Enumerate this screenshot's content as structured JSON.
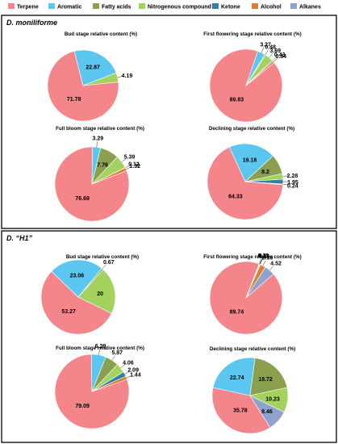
{
  "legend": [
    {
      "name": "Terpene",
      "color": "#f4858a"
    },
    {
      "name": "Aromatic",
      "color": "#5bc7f0"
    },
    {
      "name": "Fatty acids",
      "color": "#8aa04f"
    },
    {
      "name": "Nitrogenous compound",
      "color": "#a4d25f"
    },
    {
      "name": "Ketone",
      "color": "#2f7fa6"
    },
    {
      "name": "Alcohol",
      "color": "#dd7e38"
    },
    {
      "name": "Alkanes",
      "color": "#8ea2cc"
    }
  ],
  "panels": [
    {
      "title": "D. moniliforme"
    },
    {
      "title": "D. “H1”"
    }
  ],
  "chart_data": [
    {
      "type": "pie",
      "panel": "D. moniliforme",
      "title": "Bud stage relative content (%)",
      "categories": [
        "Terpene",
        "Aromatic",
        "Nitrogenous compound"
      ],
      "values": [
        71.78,
        22.87,
        4.19
      ]
    },
    {
      "type": "pie",
      "panel": "D. moniliforme",
      "title": "First flowering stage relative content (%)",
      "categories": [
        "Terpene",
        "Aromatic",
        "Fatty acids",
        "Nitrogenous compound",
        "Ketone",
        "Alcohol"
      ],
      "values": [
        89.83,
        3.27,
        0.48,
        3.69,
        0.43,
        0.84
      ]
    },
    {
      "type": "pie",
      "panel": "D. moniliforme",
      "title": "Full bloom stage relative content (%)",
      "categories": [
        "Terpene",
        "Aromatic",
        "Fatty acids",
        "Nitrogenous compound",
        "Ketone",
        "Alcohol"
      ],
      "values": [
        76.69,
        3.29,
        7.76,
        5.39,
        0.12,
        1.32
      ]
    },
    {
      "type": "pie",
      "panel": "D. moniliforme",
      "title": "Declining stage relative content (%)",
      "categories": [
        "Terpene",
        "Aromatic",
        "Fatty acids",
        "Nitrogenous compound",
        "Ketone",
        "Alcohol"
      ],
      "values": [
        64.33,
        19.18,
        8.2,
        2.28,
        1.95,
        0.24
      ]
    },
    {
      "type": "pie",
      "panel": "D. “H1”",
      "title": "Bud stage relative content (%)",
      "categories": [
        "Terpene",
        "Aromatic",
        "Fatty acids",
        "Nitrogenous compound"
      ],
      "values": [
        53.27,
        23.06,
        0.67,
        20
      ]
    },
    {
      "type": "pie",
      "panel": "D. “H1”",
      "title": "First flowering stage relative content (%)",
      "categories": [
        "Terpene",
        "Aromatic",
        "Fatty acids",
        "Nitrogenous compound",
        "Alcohol",
        "Alkanes"
      ],
      "values": [
        89.74,
        0.1,
        0.33,
        0.19,
        2.39,
        4.52
      ]
    },
    {
      "type": "pie",
      "panel": "D. “H1”",
      "title": "Full bloom stage relative content (%)",
      "categories": [
        "Terpene",
        "Aromatic",
        "Fatty acids",
        "Nitrogenous compound",
        "Ketone",
        "Alcohol"
      ],
      "values": [
        79.09,
        6.29,
        5.87,
        4.06,
        2.09,
        1.44
      ]
    },
    {
      "type": "pie",
      "panel": "D. “H1”",
      "title": "Declining stage relative content (%)",
      "categories": [
        "Terpene",
        "Aromatic",
        "Fatty acids",
        "Nitrogenous compound",
        "Alkanes"
      ],
      "values": [
        35.78,
        22.74,
        18.72,
        10.23,
        8.46
      ]
    }
  ]
}
